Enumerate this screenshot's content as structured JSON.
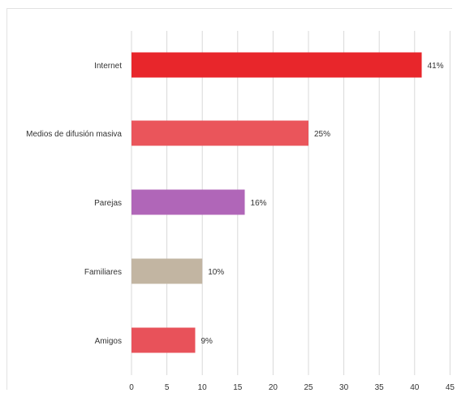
{
  "chart_data": {
    "type": "bar",
    "orientation": "horizontal",
    "categories": [
      "Internet",
      "Medios de difusión masiva",
      "Parejas",
      "Familiares",
      "Amigos"
    ],
    "values": [
      41,
      25,
      16,
      10,
      9
    ],
    "data_labels": [
      "41%",
      "25%",
      "16%",
      "10%",
      "9%"
    ],
    "colors": [
      "#e8262b",
      "#ea555b",
      "#b066b8",
      "#c2b5a2",
      "#e8525a"
    ],
    "xlim": [
      0,
      45
    ],
    "xticks": [
      "0",
      "5",
      "10",
      "15",
      "20",
      "25",
      "30",
      "35",
      "40",
      "45"
    ],
    "grid": true,
    "title": "",
    "xlabel": "",
    "ylabel": ""
  }
}
